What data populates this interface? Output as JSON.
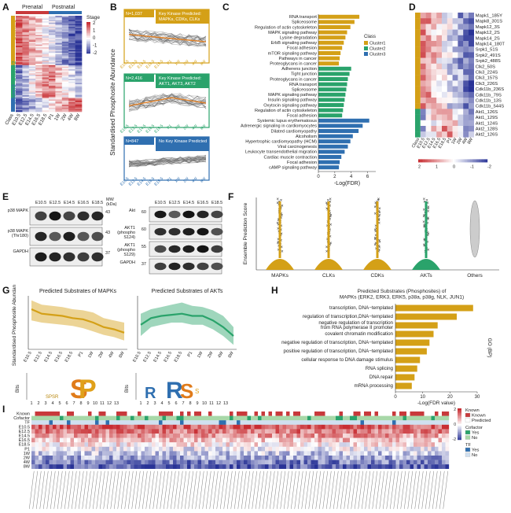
{
  "panel_labels": [
    "A",
    "B",
    "C",
    "D",
    "E",
    "F",
    "G",
    "H",
    "I"
  ],
  "colors": {
    "gold": "#d4a017",
    "green": "#2aa36b",
    "blue": "#2f6fb0",
    "red": "#c8393b",
    "heat_low": "#2b2f8f",
    "heat_high": "#c8393b"
  },
  "panelA": {
    "top_labels": [
      "Prenatal",
      "Postnatal"
    ],
    "cluster_labels": [
      "Cluster1",
      "Cluster2",
      "Cluster3"
    ],
    "x_labels": [
      "Class",
      "E10.5",
      "E12.5",
      "E14.5",
      "E16.5",
      "E18.5",
      "P1",
      "1W",
      "2W",
      "4W",
      "8W"
    ],
    "legend_title": "Stage",
    "legend_ticks": [
      "2",
      "1",
      "0",
      "-1",
      "-2"
    ]
  },
  "panelB": {
    "ylabel": "Standardised Phosphosite Abundance",
    "boxes": [
      {
        "count": "N=1,037",
        "title": "Key Kinase Predicted:\nMAPKs, CDKs, CLKs",
        "color": "#d4a017"
      },
      {
        "count": "N=2,416",
        "title": "Key Kinase Predicted:\nAKT1, AKT3, AKT2",
        "color": "#2aa36b"
      },
      {
        "count": "N=847",
        "title": "No Key Kinase Predicted",
        "color": "#2f6fb0"
      }
    ],
    "x_labels": [
      "E10.5",
      "E12.5",
      "E14.5",
      "E16.5",
      "E18.5",
      "P1",
      "1W",
      "2W",
      "4W",
      "8W"
    ]
  },
  "chart_data": [
    {
      "panel": "C",
      "type": "bar",
      "orientation": "horizontal",
      "xlabel": "-Log(FDR)",
      "xlim": [
        0,
        7
      ],
      "xticks": [
        "0",
        "2",
        "4",
        "6"
      ],
      "legend_title": "Class",
      "legend": [
        "Cluster1",
        "Cluster2",
        "Cluster3"
      ],
      "categories": [
        "RNA transport",
        "Spliceosome",
        "Regulation of actin cytoskeleton",
        "MAPK signaling pathway",
        "Lysine degradation",
        "ErbB signaling pathway",
        "Focal adhesion",
        "mTOR signaling pathway",
        "Pathways in cancer",
        "Proteoglycans in cancer",
        "Adherens junction",
        "Tight junction",
        "Proteoglycans in cancer",
        "RNA transport",
        "Spliceosome",
        "MAPK signaling pathway",
        "Insulin signaling pathway",
        "Oxytocin signaling pathway",
        "Regulation of actin cytoskeleton",
        "Focal adhesion",
        "Systemic lupus erythematosus",
        "Adrenergic signaling in cardiomyocytes",
        "Dilated cardiomyopathy",
        "Alcoholism",
        "Hypertrophic cardiomyopathy (HCM)",
        "Viral carcinogenesis",
        "Leukocyte transendothelial migration",
        "Cardiac muscle contraction",
        "Focal adhesion",
        "cAMP signaling pathway"
      ],
      "values": [
        5.0,
        4.4,
        3.9,
        3.5,
        3.3,
        3.1,
        2.9,
        2.7,
        2.6,
        2.5,
        4.0,
        3.8,
        3.6,
        3.5,
        3.4,
        3.3,
        3.2,
        3.1,
        3.0,
        2.9,
        6.2,
        5.4,
        4.9,
        4.2,
        3.9,
        3.6,
        3.2,
        2.8,
        2.6,
        2.5
      ],
      "classes": [
        "Cluster1",
        "Cluster1",
        "Cluster1",
        "Cluster1",
        "Cluster1",
        "Cluster1",
        "Cluster1",
        "Cluster1",
        "Cluster1",
        "Cluster1",
        "Cluster2",
        "Cluster2",
        "Cluster2",
        "Cluster2",
        "Cluster2",
        "Cluster2",
        "Cluster2",
        "Cluster2",
        "Cluster2",
        "Cluster2",
        "Cluster3",
        "Cluster3",
        "Cluster3",
        "Cluster3",
        "Cluster3",
        "Cluster3",
        "Cluster3",
        "Cluster3",
        "Cluster3",
        "Cluster3"
      ]
    },
    {
      "panel": "D",
      "type": "heatmap",
      "rows": [
        "Mapk1_185Y",
        "Mapk8_301S",
        "Mapk12_3S",
        "Mapk12_2S",
        "Mapk14_2S",
        "Mapk14_180T",
        "Srpk1_51S",
        "Srpk2_491S",
        "Srpk2_488S",
        "Clk2_50S",
        "Clk3_224S",
        "Clk3_157S",
        "Clk3_226S",
        "Cdk11b_236S",
        "Cdk11b_79S",
        "Cdk11b_13S",
        "Cdk11b_544S",
        "Akt1_126S",
        "Akt1_129S",
        "Akt1_124S",
        "Akt2_128S",
        "Akt2_126S"
      ],
      "columns": [
        "Class",
        "E10.5",
        "E12.5",
        "E14.5",
        "E16.5",
        "E18.5",
        "P1",
        "1W",
        "2W",
        "4W",
        "8W"
      ],
      "legend_ticks": [
        "2",
        "1",
        "0",
        "-1",
        "-2"
      ]
    },
    {
      "panel": "F",
      "type": "violin",
      "ylabel": "Ensemble Prediction Score",
      "categories": [
        "MAPKs",
        "CLKs",
        "CDKs",
        "AKTs",
        "Others"
      ]
    },
    {
      "panel": "G",
      "type": "line",
      "ylabel": "Standardised Phosphosite Abundance",
      "x": [
        "E10.5",
        "E12.5",
        "E14.5",
        "E16.5",
        "E18.5",
        "P1",
        "1W",
        "2W",
        "4W",
        "8W"
      ],
      "series": [
        {
          "name": "Predicted Substrates of MAPKs",
          "values": [
            0.6,
            0.4,
            0.35,
            0.3,
            0.2,
            0.15,
            0.0,
            -0.2,
            -0.3,
            -0.45
          ],
          "lower": [
            0.1,
            0.0,
            -0.05,
            -0.1,
            -0.15,
            -0.25,
            -0.4,
            -0.55,
            -0.65,
            -0.8
          ],
          "upper": [
            1.0,
            0.8,
            0.75,
            0.7,
            0.6,
            0.55,
            0.45,
            0.2,
            0.1,
            0.0
          ]
        },
        {
          "name": "Predicted Substrates of AKTs",
          "values": [
            -0.1,
            0.2,
            0.3,
            0.35,
            0.4,
            0.3,
            0.3,
            0.1,
            -0.2,
            -0.6
          ],
          "lower": [
            -0.6,
            -0.2,
            -0.1,
            0.0,
            0.0,
            -0.1,
            -0.1,
            -0.3,
            -0.6,
            -1.0
          ],
          "upper": [
            0.4,
            0.6,
            0.7,
            0.8,
            0.9,
            0.75,
            0.7,
            0.55,
            0.3,
            -0.2
          ]
        }
      ],
      "motif_ylabel": "Bits",
      "motif_positions": [
        "1",
        "2",
        "3",
        "4",
        "5",
        "6",
        "7",
        "8",
        "9",
        "10",
        "11",
        "12",
        "13"
      ]
    },
    {
      "panel": "H",
      "type": "bar",
      "orientation": "horizontal",
      "title": "Predicted Substrates (Phosphosites) of\nMAPKs (ERK2, ERK3, ERK5, p38a, p38g, NLK, JUN1)",
      "ylabel": "GO (BP)",
      "xlabel": "-Log(FDR value)",
      "xlim": [
        0,
        30
      ],
      "xticks": [
        "0",
        "10",
        "20",
        "30"
      ],
      "categories": [
        "transcription, DNA−templated",
        "regulation of transcription,DNA−templated",
        "negative regulation of transcription\nfrom RNA polymerase II promoter",
        "covalent chromatin modification",
        "negative regulation of transcription, DNA−templated",
        "positive regulation of transcription, DNA−templated",
        "cellular response to DNA damage stimulus",
        "RNA splicing",
        "DNA repair",
        "mRNA processing"
      ],
      "values": [
        28.5,
        22.5,
        15.5,
        14.0,
        12.5,
        11.5,
        9.0,
        8.0,
        7.0,
        6.0
      ]
    },
    {
      "panel": "I",
      "type": "heatmap",
      "row_labels": [
        "Known",
        "Cofactor",
        "TF",
        "E10.5",
        "E12.5",
        "E14.5",
        "E16.5",
        "E18.5",
        "P1",
        "1W",
        "2W",
        "4W",
        "8W"
      ],
      "legend": [
        {
          "title": "Known",
          "items": [
            "Known",
            "Predicted"
          ]
        },
        {
          "title": "Cofactor",
          "items": [
            "Yes",
            "No"
          ]
        },
        {
          "title": "TF",
          "items": [
            "Yes",
            "No"
          ]
        }
      ],
      "legend_ticks": [
        "2",
        "0",
        "-2"
      ]
    }
  ],
  "panelE": {
    "stages": [
      "E10.5",
      "E12.5",
      "E14.5",
      "E16.5",
      "E18.5"
    ],
    "left_rows": [
      {
        "label": "p38 MAPK",
        "mw": "43"
      },
      {
        "label": "p38 MAPK\n(Thr180)",
        "mw": "43"
      },
      {
        "label": "GAPDH",
        "mw": "37"
      }
    ],
    "right_rows": [
      {
        "label": "Akt",
        "mw": "60"
      },
      {
        "label": "AKT1\n(phospho\nS124)",
        "mw": "60"
      },
      {
        "label": "AKT1\n(phospho\nS129)",
        "mw": "55"
      },
      {
        "label": "GAPDH",
        "mw": "37"
      }
    ],
    "mw_unit": "MW\n(kDa)"
  }
}
